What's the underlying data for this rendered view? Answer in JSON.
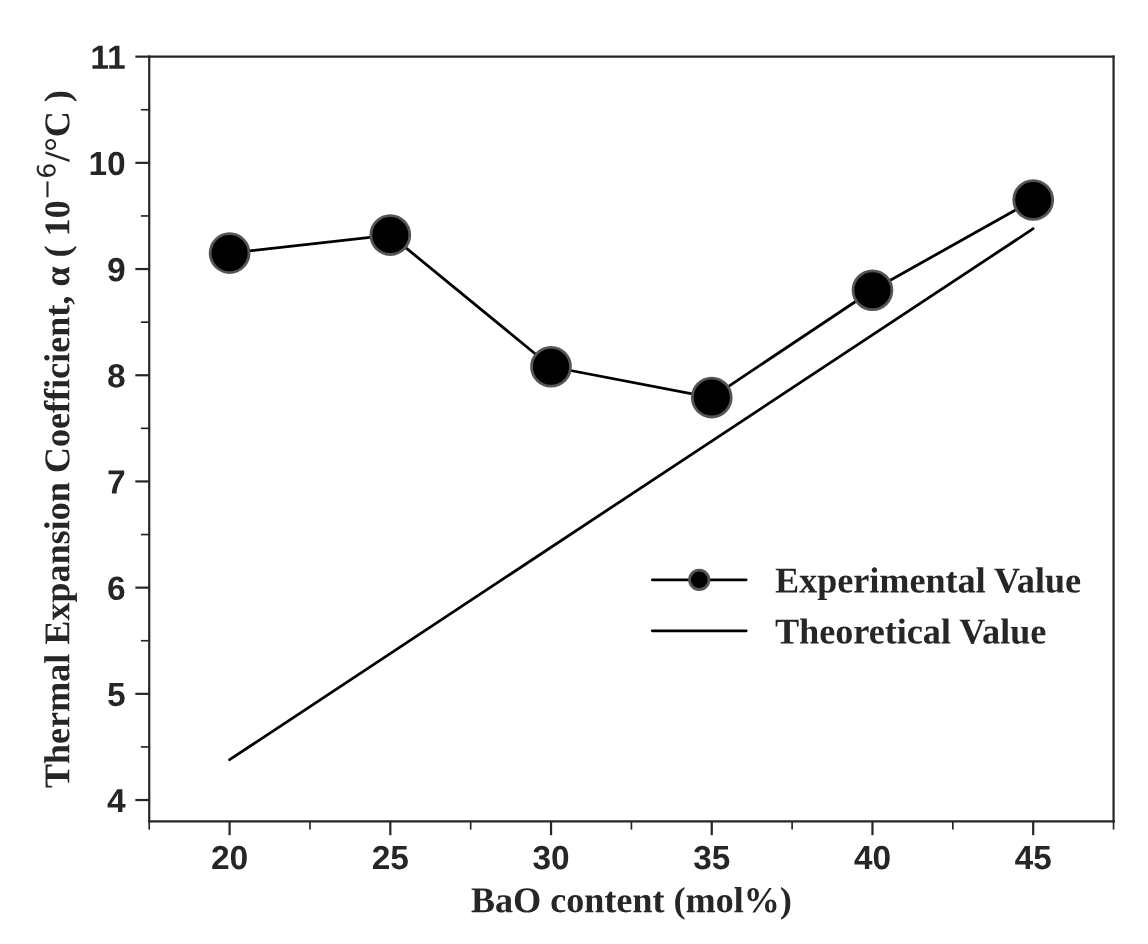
{
  "chart_data": {
    "type": "line",
    "xlabel": "BaO content (mol%)",
    "ylabel": "Thermal Expansion Coefficient, α ( 10$^{−6}$/°C )",
    "series": [
      {
        "name": "Experimental Value",
        "marker": "circle",
        "color": "#000000",
        "x": [
          20,
          25,
          30,
          35,
          40,
          45
        ],
        "values": [
          9.15,
          9.32,
          8.08,
          7.79,
          8.8,
          9.65
        ]
      },
      {
        "name": "Theoretical Value",
        "marker": "none",
        "color": "#000000",
        "x": [
          20,
          45
        ],
        "values": [
          4.38,
          9.38
        ]
      }
    ],
    "xlim": [
      17.5,
      47.5
    ],
    "xticks": [
      20,
      25,
      30,
      35,
      40,
      45
    ],
    "ylim": [
      3.8,
      11
    ],
    "yticks": [
      4,
      5,
      6,
      7,
      8,
      9,
      10,
      11
    ],
    "grid": false,
    "legend": "lower right",
    "line_style": "solid"
  }
}
